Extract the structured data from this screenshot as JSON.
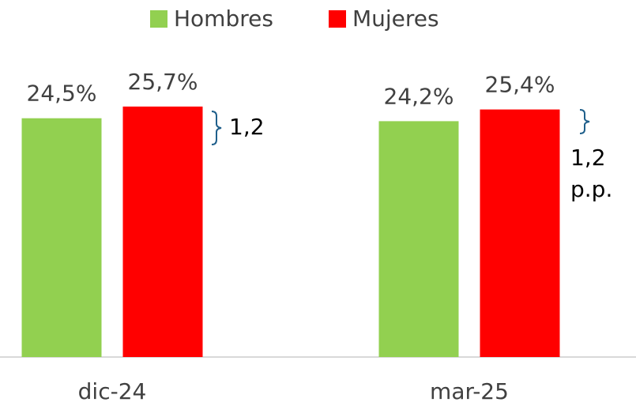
{
  "chart_data": {
    "type": "bar",
    "categories": [
      "dic-24",
      "mar-25"
    ],
    "series": [
      {
        "name": "Hombres",
        "color": "#92d050",
        "values": [
          24.5,
          24.2
        ],
        "value_labels": [
          "24,5%",
          "24,2%"
        ]
      },
      {
        "name": "Mujeres",
        "color": "#ff0000",
        "values": [
          25.7,
          25.4
        ],
        "value_labels": [
          "25,7%",
          "25,4%"
        ]
      }
    ],
    "ylim": [
      0,
      29.5
    ],
    "annotations": [
      "1,2",
      "1,2 p.p."
    ],
    "legend": "top"
  }
}
